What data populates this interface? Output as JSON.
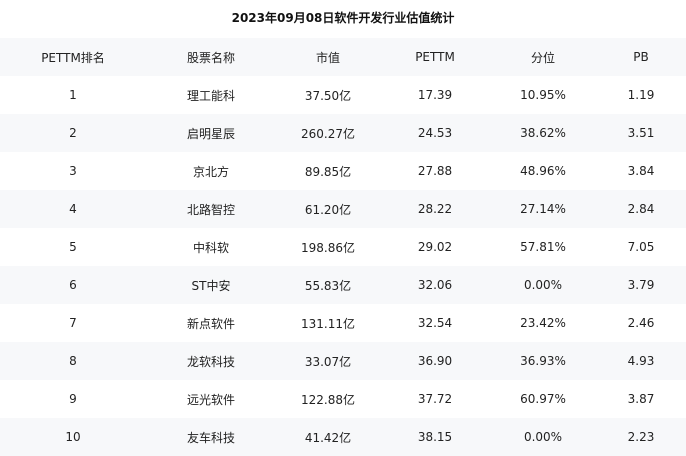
{
  "title": "2023年09月08日软件开发行业估值统计",
  "columns": [
    "PETTM排名",
    "股票名称",
    "市值",
    "PETTM",
    "分位",
    "PB"
  ],
  "rows": [
    [
      "1",
      "理工能科",
      "37.50亿",
      "17.39",
      "10.95%",
      "1.19"
    ],
    [
      "2",
      "启明星辰",
      "260.27亿",
      "24.53",
      "38.62%",
      "3.51"
    ],
    [
      "3",
      "京北方",
      "89.85亿",
      "27.88",
      "48.96%",
      "3.84"
    ],
    [
      "4",
      "北路智控",
      "61.20亿",
      "28.22",
      "27.14%",
      "2.84"
    ],
    [
      "5",
      "中科软",
      "198.86亿",
      "29.02",
      "57.81%",
      "7.05"
    ],
    [
      "6",
      "ST中安",
      "55.83亿",
      "32.06",
      "0.00%",
      "3.79"
    ],
    [
      "7",
      "新点软件",
      "131.11亿",
      "32.54",
      "23.42%",
      "2.46"
    ],
    [
      "8",
      "龙软科技",
      "33.07亿",
      "36.90",
      "36.93%",
      "4.93"
    ],
    [
      "9",
      "远光软件",
      "122.88亿",
      "37.72",
      "60.97%",
      "3.87"
    ],
    [
      "10",
      "友车科技",
      "41.42亿",
      "38.15",
      "0.00%",
      "2.23"
    ]
  ]
}
